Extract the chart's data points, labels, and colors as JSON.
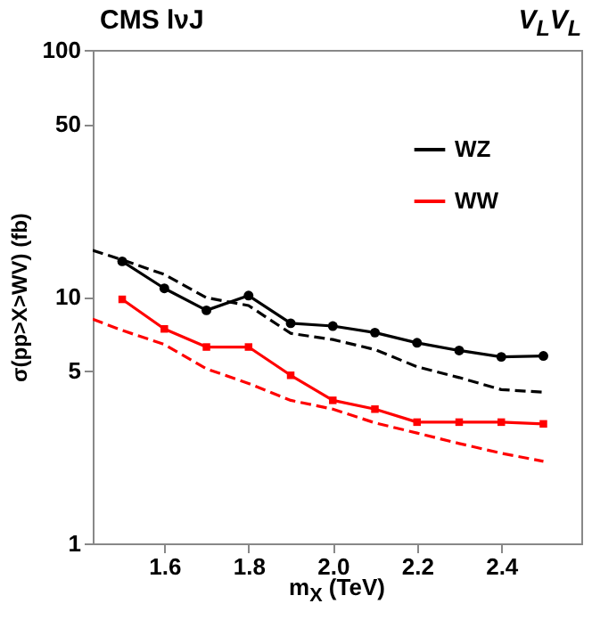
{
  "chart_data": {
    "type": "line",
    "title": "CMS lνJ",
    "annotations": [
      "V$_{L}$V$_{L}$"
    ],
    "xlabel": "m$_{X}$ (TeV)",
    "ylabel": "σ(pp>X>WV) (fb)",
    "log": "y",
    "grid": false,
    "legend": "top right",
    "xlim": [
      1.43,
      2.59
    ],
    "xticks": [
      1.6,
      1.8,
      {
        "value": 2,
        "label": "2.0"
      },
      2.2,
      2.4
    ],
    "ylim": [
      1,
      100
    ],
    "yticks": [
      1,
      5,
      10,
      50,
      100
    ],
    "series": [
      {
        "name": "WZ",
        "color": "#000000",
        "marker": "circle",
        "line_style": "solid",
        "x": [
          1.5,
          1.6,
          1.7,
          1.8,
          1.9,
          2.0,
          2.1,
          2.2,
          2.3,
          2.4,
          2.5
        ],
        "values": [
          13.9,
          10.8,
          8.8,
          10.1,
          7.8,
          7.6,
          7.15,
          6.5,
          6.05,
          5.7,
          5.75
        ]
      },
      {
        "color": "#000000",
        "marker": "none",
        "line_style": "dashed",
        "x": [
          1.43,
          1.5,
          1.6,
          1.7,
          1.8,
          1.9,
          2.0,
          2.1,
          2.2,
          2.3,
          2.4,
          2.5
        ],
        "values": [
          15.4,
          14.1,
          12.3,
          9.9,
          9.2,
          7.1,
          6.7,
          6.1,
          5.2,
          4.7,
          4.2,
          4.1
        ]
      },
      {
        "name": "WW",
        "color": "#ff0000",
        "marker": "square",
        "line_style": "solid",
        "x": [
          1.5,
          1.6,
          1.7,
          1.8,
          1.9,
          2.0,
          2.1,
          2.2,
          2.3,
          2.4,
          2.5
        ],
        "values": [
          9.75,
          7.4,
          6.25,
          6.25,
          4.8,
          3.8,
          3.5,
          3.1,
          3.1,
          3.1,
          3.05
        ]
      },
      {
        "color": "#ff0000",
        "marker": "none",
        "line_style": "dashed",
        "x": [
          1.43,
          1.5,
          1.6,
          1.7,
          1.8,
          1.9,
          2.0,
          2.1,
          2.2,
          2.3,
          2.4,
          2.5
        ],
        "values": [
          8.1,
          7.3,
          6.4,
          5.1,
          4.45,
          3.8,
          3.5,
          3.08,
          2.8,
          2.54,
          2.32,
          2.15
        ]
      }
    ]
  }
}
